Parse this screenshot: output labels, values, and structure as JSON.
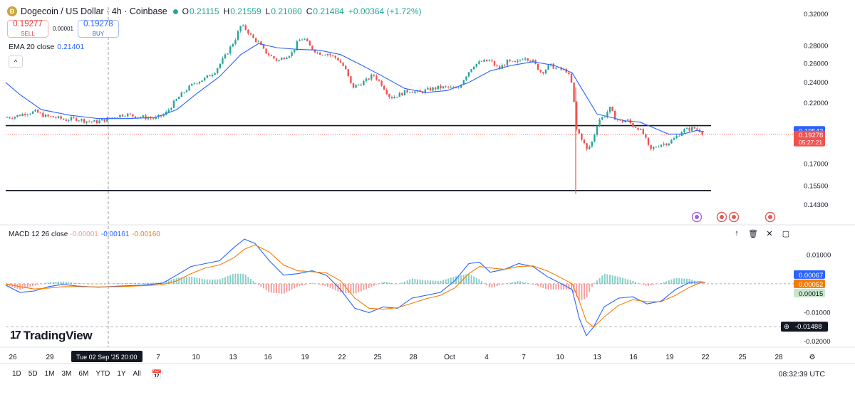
{
  "header": {
    "coin_glyph": "Ð",
    "title": "Dogecoin / US Dollar · 4h · Coinbase",
    "o_label": "O",
    "o_value": "0.21115",
    "h_label": "H",
    "h_value": "0.21559",
    "l_label": "L",
    "l_value": "0.21080",
    "c_label": "C",
    "c_value": "0.21484",
    "change": "+0.00364 (+1.72%)"
  },
  "trade": {
    "sell_price": "0.19277",
    "sell_label": "SELL",
    "spread": "0.00001",
    "buy_price": "0.19278",
    "buy_label": "BUY"
  },
  "ema_legend": {
    "label": "EMA 20 close",
    "value": "0.21401"
  },
  "collapse_glyph": "^",
  "macd_legend": {
    "label": "MACD 12 26 close",
    "hist": "-0.00001",
    "macd": "-0.00161",
    "signal": "-0.00160"
  },
  "pane_tools": [
    "↑",
    "🗑",
    "✕",
    "▢"
  ],
  "logo": {
    "mark": "17",
    "text": "TradingView"
  },
  "ranges": [
    "1D",
    "5D",
    "1M",
    "3M",
    "6M",
    "YTD",
    "1Y",
    "All"
  ],
  "calendar_icon": "calendar-icon",
  "clock": "08:32:39 UTC",
  "colors": {
    "up": "#26a69a",
    "down": "#ef5350",
    "ema": "#2962ff",
    "macd": "#2962ff",
    "signal": "#f57c00"
  },
  "chart_data": [
    {
      "type": "candlestick",
      "price_axis_labels": [
        "0.32000",
        "0.28000",
        "0.26000",
        "0.24000",
        "0.22000",
        "0.19542",
        "0.19278",
        "05:27:21",
        "0.17000",
        "0.15500",
        "0.14300"
      ],
      "y_log_scale": true,
      "ylim": [
        0.138,
        0.33
      ],
      "date_tick_labels": [
        "26",
        "29",
        "Tue 02 Sep '25   20:00",
        "7",
        "10",
        "13",
        "16",
        "19",
        "22",
        "25",
        "28",
        "Oct",
        "4",
        "7",
        "10",
        "13",
        "16",
        "19",
        "22",
        "25",
        "28"
      ],
      "crosshair_date": "Tue 02 Sep '25   20:00",
      "horizontal_levels": [
        0.2,
        0.152
      ],
      "ema_last": 0.19542,
      "last_price": 0.19278,
      "countdown": "05:27:21",
      "close_path": [
        [
          0,
          0.207
        ],
        [
          14,
          0.208
        ],
        [
          28,
          0.211
        ],
        [
          42,
          0.212
        ],
        [
          56,
          0.208
        ],
        [
          70,
          0.207
        ],
        [
          84,
          0.205
        ],
        [
          98,
          0.206
        ],
        [
          112,
          0.204
        ],
        [
          126,
          0.203
        ],
        [
          140,
          0.205
        ],
        [
          154,
          0.208
        ],
        [
          168,
          0.21
        ],
        [
          182,
          0.208
        ],
        [
          196,
          0.207
        ],
        [
          210,
          0.206
        ],
        [
          224,
          0.21
        ],
        [
          238,
          0.222
        ],
        [
          252,
          0.232
        ],
        [
          266,
          0.24
        ],
        [
          280,
          0.244
        ],
        [
          294,
          0.252
        ],
        [
          308,
          0.268
        ],
        [
          322,
          0.288
        ],
        [
          330,
          0.305
        ],
        [
          338,
          0.3
        ],
        [
          346,
          0.29
        ],
        [
          354,
          0.285
        ],
        [
          362,
          0.275
        ],
        [
          372,
          0.268
        ],
        [
          382,
          0.263
        ],
        [
          392,
          0.268
        ],
        [
          402,
          0.272
        ],
        [
          410,
          0.285
        ],
        [
          418,
          0.29
        ],
        [
          426,
          0.28
        ],
        [
          438,
          0.272
        ],
        [
          452,
          0.271
        ],
        [
          466,
          0.265
        ],
        [
          476,
          0.255
        ],
        [
          486,
          0.235
        ],
        [
          496,
          0.238
        ],
        [
          506,
          0.242
        ],
        [
          516,
          0.248
        ],
        [
          528,
          0.238
        ],
        [
          540,
          0.225
        ],
        [
          552,
          0.228
        ],
        [
          566,
          0.232
        ],
        [
          580,
          0.23
        ],
        [
          594,
          0.233
        ],
        [
          608,
          0.235
        ],
        [
          622,
          0.235
        ],
        [
          634,
          0.233
        ],
        [
          644,
          0.245
        ],
        [
          656,
          0.258
        ],
        [
          668,
          0.262
        ],
        [
          680,
          0.263
        ],
        [
          692,
          0.254
        ],
        [
          704,
          0.262
        ],
        [
          716,
          0.26
        ],
        [
          728,
          0.268
        ],
        [
          740,
          0.262
        ],
        [
          752,
          0.25
        ],
        [
          764,
          0.258
        ],
        [
          776,
          0.254
        ],
        [
          788,
          0.252
        ],
        [
          796,
          0.235
        ],
        [
          800,
          0.198
        ],
        [
          808,
          0.19
        ],
        [
          816,
          0.18
        ],
        [
          824,
          0.188
        ],
        [
          832,
          0.205
        ],
        [
          840,
          0.208
        ],
        [
          848,
          0.215
        ],
        [
          856,
          0.206
        ],
        [
          864,
          0.203
        ],
        [
          872,
          0.205
        ],
        [
          880,
          0.2
        ],
        [
          888,
          0.198
        ],
        [
          896,
          0.192
        ],
        [
          904,
          0.18
        ],
        [
          912,
          0.183
        ],
        [
          920,
          0.185
        ],
        [
          930,
          0.186
        ],
        [
          940,
          0.19
        ],
        [
          950,
          0.196
        ],
        [
          958,
          0.197
        ],
        [
          966,
          0.198
        ],
        [
          974,
          0.196
        ],
        [
          980,
          0.193
        ]
      ],
      "wick_spike": {
        "x": 800,
        "low": 0.15
      },
      "ema_path": [
        [
          0,
          0.24
        ],
        [
          20,
          0.228
        ],
        [
          50,
          0.214
        ],
        [
          90,
          0.209
        ],
        [
          130,
          0.206
        ],
        [
          170,
          0.206
        ],
        [
          210,
          0.207
        ],
        [
          240,
          0.214
        ],
        [
          270,
          0.23
        ],
        [
          300,
          0.246
        ],
        [
          330,
          0.27
        ],
        [
          355,
          0.283
        ],
        [
          380,
          0.278
        ],
        [
          410,
          0.276
        ],
        [
          440,
          0.275
        ],
        [
          470,
          0.27
        ],
        [
          500,
          0.258
        ],
        [
          530,
          0.246
        ],
        [
          560,
          0.234
        ],
        [
          590,
          0.23
        ],
        [
          620,
          0.232
        ],
        [
          650,
          0.24
        ],
        [
          680,
          0.252
        ],
        [
          710,
          0.258
        ],
        [
          740,
          0.262
        ],
        [
          770,
          0.258
        ],
        [
          795,
          0.25
        ],
        [
          810,
          0.232
        ],
        [
          830,
          0.21
        ],
        [
          850,
          0.207
        ],
        [
          870,
          0.204
        ],
        [
          890,
          0.203
        ],
        [
          910,
          0.198
        ],
        [
          930,
          0.193
        ],
        [
          950,
          0.193
        ],
        [
          970,
          0.196
        ],
        [
          980,
          0.195
        ]
      ]
    },
    {
      "type": "macd",
      "axis_labels": [
        "0.01000",
        "0.00067",
        "0.00052",
        "0.00015",
        "-0.01000",
        "-0.01488",
        "-0.02000"
      ],
      "ylim": [
        -0.022,
        0.017
      ],
      "zero_line": 0.0,
      "markers": {
        "macd": 0.00067,
        "signal": 0.00052,
        "hist": 0.00015,
        "crosshair": -0.01488
      },
      "macd_path": [
        [
          0,
          -0.0005
        ],
        [
          20,
          -0.003
        ],
        [
          40,
          -0.0025
        ],
        [
          60,
          -0.001
        ],
        [
          80,
          -0.0002
        ],
        [
          100,
          -0.0008
        ],
        [
          130,
          -0.0012
        ],
        [
          160,
          -0.0008
        ],
        [
          190,
          -0.0005
        ],
        [
          220,
          0.0002
        ],
        [
          240,
          0.003
        ],
        [
          260,
          0.006
        ],
        [
          280,
          0.007
        ],
        [
          300,
          0.008
        ],
        [
          320,
          0.0125
        ],
        [
          335,
          0.0155
        ],
        [
          350,
          0.014
        ],
        [
          370,
          0.008
        ],
        [
          390,
          0.003
        ],
        [
          410,
          0.0035
        ],
        [
          430,
          0.0045
        ],
        [
          450,
          0.003
        ],
        [
          470,
          -0.002
        ],
        [
          490,
          -0.0085
        ],
        [
          510,
          -0.01
        ],
        [
          530,
          -0.008
        ],
        [
          550,
          -0.0085
        ],
        [
          570,
          -0.005
        ],
        [
          590,
          -0.004
        ],
        [
          610,
          -0.003
        ],
        [
          630,
          0.001
        ],
        [
          650,
          0.007
        ],
        [
          665,
          0.0075
        ],
        [
          680,
          0.004
        ],
        [
          700,
          0.005
        ],
        [
          720,
          0.007
        ],
        [
          740,
          0.006
        ],
        [
          760,
          0.0025
        ],
        [
          780,
          0.0
        ],
        [
          795,
          -0.002
        ],
        [
          805,
          -0.012
        ],
        [
          815,
          -0.018
        ],
        [
          825,
          -0.015
        ],
        [
          840,
          -0.008
        ],
        [
          860,
          -0.005
        ],
        [
          880,
          -0.0045
        ],
        [
          900,
          -0.007
        ],
        [
          920,
          -0.006
        ],
        [
          940,
          -0.002
        ],
        [
          960,
          0.0005
        ],
        [
          975,
          0.0007
        ],
        [
          982,
          0.0005
        ]
      ],
      "signal_path": [
        [
          0,
          0.0
        ],
        [
          20,
          -0.001
        ],
        [
          40,
          -0.0018
        ],
        [
          60,
          -0.0015
        ],
        [
          80,
          -0.001
        ],
        [
          100,
          -0.001
        ],
        [
          130,
          -0.0011
        ],
        [
          160,
          -0.001
        ],
        [
          190,
          -0.0007
        ],
        [
          220,
          -0.0003
        ],
        [
          240,
          0.001
        ],
        [
          260,
          0.0035
        ],
        [
          280,
          0.0055
        ],
        [
          300,
          0.0065
        ],
        [
          320,
          0.009
        ],
        [
          335,
          0.012
        ],
        [
          350,
          0.0135
        ],
        [
          370,
          0.011
        ],
        [
          390,
          0.0065
        ],
        [
          410,
          0.0045
        ],
        [
          430,
          0.0042
        ],
        [
          450,
          0.0038
        ],
        [
          470,
          0.001
        ],
        [
          490,
          -0.005
        ],
        [
          510,
          -0.0085
        ],
        [
          530,
          -0.0088
        ],
        [
          550,
          -0.0083
        ],
        [
          570,
          -0.0068
        ],
        [
          590,
          -0.0052
        ],
        [
          610,
          -0.004
        ],
        [
          630,
          -0.0015
        ],
        [
          650,
          0.0035
        ],
        [
          665,
          0.006
        ],
        [
          680,
          0.0055
        ],
        [
          700,
          0.005
        ],
        [
          720,
          0.006
        ],
        [
          740,
          0.0062
        ],
        [
          760,
          0.0045
        ],
        [
          780,
          0.002
        ],
        [
          795,
          0.0
        ],
        [
          805,
          -0.006
        ],
        [
          815,
          -0.013
        ],
        [
          825,
          -0.015
        ],
        [
          840,
          -0.0115
        ],
        [
          860,
          -0.0075
        ],
        [
          880,
          -0.0055
        ],
        [
          900,
          -0.0062
        ],
        [
          920,
          -0.0062
        ],
        [
          940,
          -0.004
        ],
        [
          960,
          -0.0012
        ],
        [
          975,
          0.0004
        ],
        [
          982,
          0.0005
        ]
      ]
    }
  ]
}
